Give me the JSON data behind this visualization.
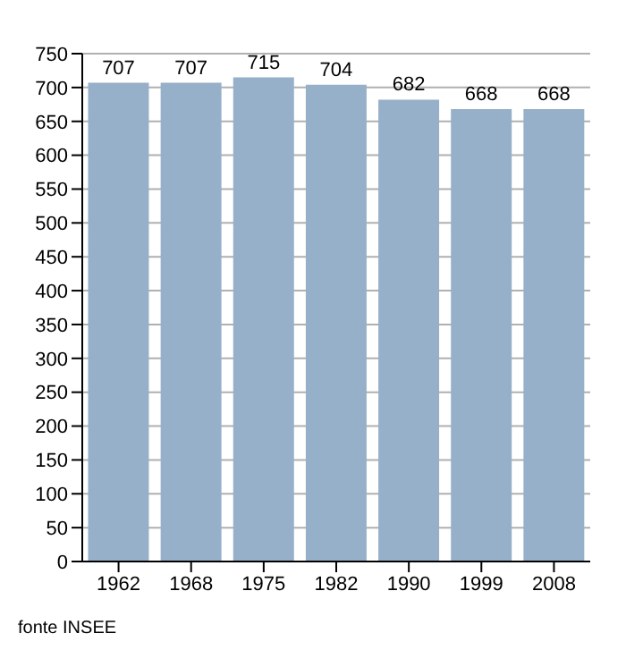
{
  "chart_data": {
    "type": "bar",
    "categories": [
      "1962",
      "1968",
      "1975",
      "1982",
      "1990",
      "1999",
      "2008"
    ],
    "values": [
      707,
      707,
      715,
      704,
      682,
      668,
      668
    ],
    "color": "#97b0c9",
    "ylim": [
      0,
      750
    ],
    "yticks": [
      0,
      50,
      100,
      150,
      200,
      250,
      300,
      350,
      400,
      450,
      500,
      550,
      600,
      650,
      700,
      750
    ],
    "grid": "y",
    "data_labels": true,
    "annotations": [
      "fonte INSEE"
    ]
  }
}
